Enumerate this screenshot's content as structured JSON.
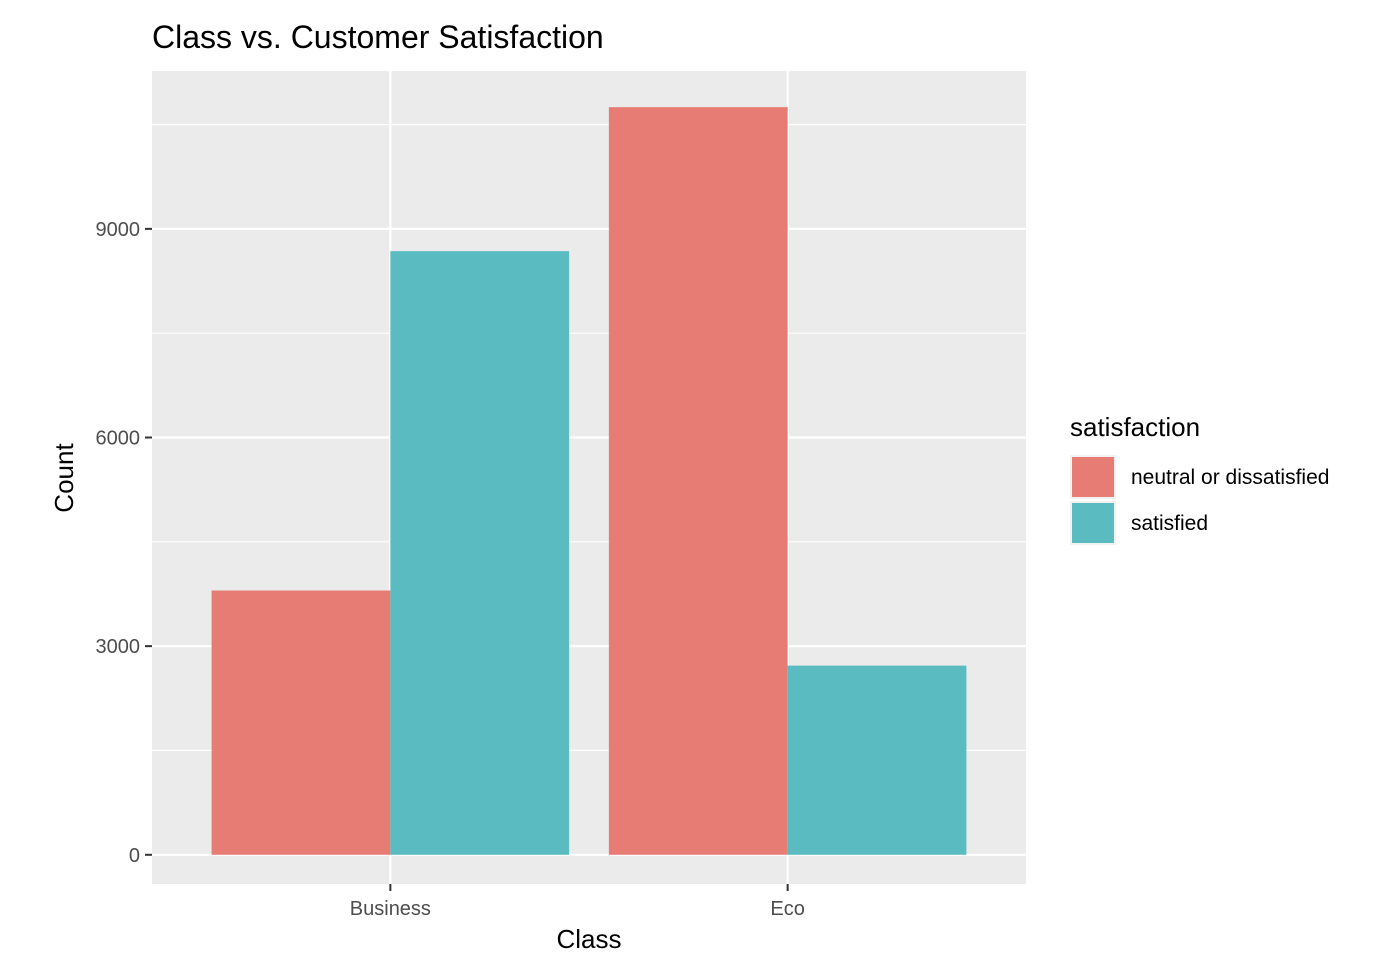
{
  "chart_data": {
    "type": "bar",
    "title": "Class vs. Customer Satisfaction",
    "xlabel": "Class",
    "ylabel": "Count",
    "categories": [
      "Business",
      "Eco"
    ],
    "series": [
      {
        "name": "neutral or dissatisfied",
        "color": "#E67C73",
        "values": [
          3800,
          10750
        ]
      },
      {
        "name": "satisfied",
        "color": "#5ABCC1",
        "values": [
          8680,
          2720
        ]
      }
    ],
    "ylim": [
      -420,
      11270
    ],
    "y_ticks": [
      0,
      3000,
      6000,
      9000
    ],
    "y_tick_labels": [
      "0",
      "3000",
      "6000",
      "9000"
    ],
    "legend": {
      "title": "satisfaction",
      "position": "right"
    },
    "grid": true,
    "panel_background": "#EBEBEB",
    "grid_color": "#FFFFFF"
  }
}
